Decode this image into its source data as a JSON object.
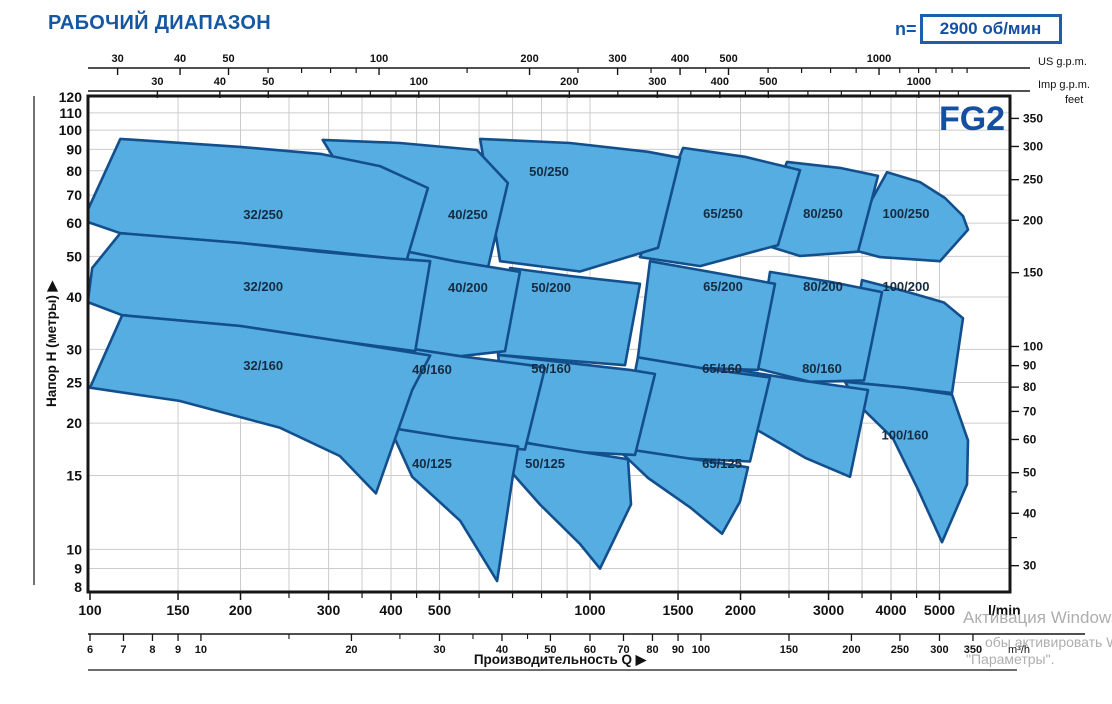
{
  "header": {
    "title": "РАБОЧИЙ ДИАПАЗОН",
    "rpm_prefix": "n=",
    "rpm_value": "2900 об/мин"
  },
  "model_badge": "FG2",
  "watermark": {
    "line1": "Активация Windows",
    "line2": "обы активировать Windows, перейдите",
    "line3": "\"Параметры\"."
  },
  "colors": {
    "accent_blue": "#1557a0",
    "region_fill": "#56ade2",
    "region_stroke": "#134f8c",
    "grid": "#cccccc",
    "axis": "#161616",
    "watermark": "#aeaeae"
  },
  "chart_data": {
    "type": "area",
    "title": "РАБОЧИЙ ДИАПАЗОН",
    "subtitle": "n= 2900 об/мин",
    "model": "FG2",
    "x_scale": "log",
    "y_scale": "log",
    "x_range_lmin": [
      100,
      5900
    ],
    "y_range_m": [
      8,
      120
    ],
    "xlabel": "Производительность Q  ▶",
    "ylabel": "Напор H (метры)  ▶",
    "axes": {
      "x_lmin": {
        "unit": "l/min",
        "labeled": [
          100,
          150,
          200,
          300,
          400,
          500,
          1000,
          1500,
          2000,
          3000,
          4000,
          5000
        ],
        "minor": [
          250,
          350,
          450,
          600,
          700,
          800,
          900,
          2500,
          3500,
          4500
        ]
      },
      "x_m3h": {
        "unit": "m³/h",
        "factor_to_lmin": 16.667,
        "labeled": [
          6,
          7,
          8,
          9,
          10,
          20,
          30,
          40,
          50,
          60,
          70,
          80,
          90,
          100,
          150,
          200,
          250,
          300,
          350
        ],
        "minor": [
          15,
          25,
          35,
          45
        ]
      },
      "x_usgpm": {
        "unit": "US g.p.m.",
        "factor_to_lmin": 3.785,
        "labeled": [
          30,
          40,
          50,
          100,
          200,
          300,
          400,
          500,
          1000
        ],
        "minor": [
          60,
          70,
          80,
          90,
          150,
          250,
          350,
          450,
          600,
          700,
          800,
          900,
          1100,
          1200,
          1300,
          1400,
          1500
        ]
      },
      "x_impgpm": {
        "unit": "Imp g.p.m.",
        "factor_to_lmin": 4.546,
        "labeled": [
          30,
          40,
          50,
          100,
          200,
          300,
          400,
          500,
          1000
        ],
        "minor": [
          60,
          70,
          80,
          90,
          150,
          250,
          350,
          450,
          600,
          700,
          800,
          900,
          1100,
          1200
        ]
      },
      "y_m": {
        "unit": "метры",
        "labeled": [
          120,
          110,
          100,
          90,
          80,
          70,
          60,
          50,
          40,
          30,
          25,
          20,
          15,
          10,
          9,
          8
        ]
      },
      "y_feet": {
        "unit": "feet",
        "factor_to_m": 0.3048,
        "labeled": [
          350,
          300,
          250,
          200,
          150,
          100,
          90,
          80,
          70,
          60,
          50,
          40,
          30
        ],
        "minor": [
          45,
          35
        ]
      }
    },
    "grid": {
      "v_lmin": [
        150,
        200,
        250,
        300,
        350,
        400,
        450,
        500,
        600,
        700,
        800,
        900,
        1000,
        1500,
        2000,
        2500,
        3000,
        3500,
        4000,
        4500,
        5000
      ],
      "h_m": [
        9,
        10,
        15,
        20,
        25,
        30,
        40,
        50,
        60,
        70,
        80,
        90,
        100,
        110
      ]
    },
    "regions": [
      {
        "label": "100/250",
        "label_pos": [
          4285,
          63.1
        ],
        "outline": [
          [
            3236,
            52.4
          ],
          [
            3926,
            79.4
          ],
          [
            4571,
            75.2
          ],
          [
            5129,
            68.9
          ],
          [
            5572,
            62.4
          ],
          [
            5702,
            57.9
          ],
          [
            5012,
            48.7
          ],
          [
            3802,
            49.8
          ]
        ]
      },
      {
        "label": "100/200",
        "label_pos": [
          4285,
          42.2
        ],
        "outline": [
          [
            3236,
            25.1
          ],
          [
            3500,
            43.9
          ],
          [
            4266,
            41.3
          ],
          [
            5105,
            38.8
          ],
          [
            5572,
            35.6
          ],
          [
            5297,
            23.6
          ],
          [
            4266,
            24.3
          ]
        ]
      },
      {
        "label": "100/160",
        "label_pos": [
          4266,
          18.7
        ],
        "outline": [
          [
            3236,
            25.1
          ],
          [
            4266,
            24.3
          ],
          [
            5297,
            23.4
          ],
          [
            5702,
            18.2
          ],
          [
            5675,
            14.3
          ],
          [
            5058,
            10.4
          ],
          [
            4529,
            13.9
          ],
          [
            4036,
            18.4
          ],
          [
            3436,
            22.2
          ]
        ]
      },
      {
        "label": "80/250",
        "label_pos": [
          2924,
          63.1
        ],
        "outline": [
          [
            2138,
            54.1
          ],
          [
            2477,
            84.0
          ],
          [
            3162,
            81.3
          ],
          [
            3767,
            77.8
          ],
          [
            3436,
            51.3
          ],
          [
            2630,
            50.1
          ]
        ]
      },
      {
        "label": "80/200",
        "label_pos": [
          2924,
          42.2
        ],
        "outline": [
          [
            2138,
            27.1
          ],
          [
            2291,
            45.9
          ],
          [
            3048,
            43.4
          ],
          [
            3837,
            41.1
          ],
          [
            3532,
            25.3
          ],
          [
            2754,
            25.1
          ]
        ]
      },
      {
        "label": "80/160",
        "label_pos": [
          2910,
          26.9
        ],
        "outline": [
          [
            1644,
            22.3
          ],
          [
            1977,
            26.8
          ],
          [
            2630,
            25.3
          ],
          [
            3598,
            24.0
          ],
          [
            3311,
            14.9
          ],
          [
            2704,
            16.5
          ],
          [
            2188,
            19.1
          ]
        ]
      },
      {
        "label": "65/250",
        "label_pos": [
          1845,
          63.1
        ],
        "outline": [
          [
            1259,
            49.8
          ],
          [
            1535,
            90.7
          ],
          [
            2042,
            86.4
          ],
          [
            2630,
            80.3
          ],
          [
            2377,
            53.2
          ],
          [
            1660,
            47.4
          ]
        ]
      },
      {
        "label": "65/200",
        "label_pos": [
          1845,
          42.2
        ],
        "outline": [
          [
            1247,
            28.7
          ],
          [
            1318,
            48.7
          ],
          [
            1738,
            45.9
          ],
          [
            2344,
            43.0
          ],
          [
            2168,
            26.8
          ],
          [
            1660,
            27.1
          ]
        ]
      },
      {
        "label": "65/160",
        "label_pos": [
          1837,
          26.9
        ],
        "outline": [
          [
            1148,
            17.3
          ],
          [
            1247,
            28.7
          ],
          [
            1660,
            27.1
          ],
          [
            2291,
            25.7
          ],
          [
            2089,
            16.2
          ],
          [
            1514,
            16.5
          ]
        ]
      },
      {
        "label": "65/125",
        "label_pos": [
          1837,
          16.0
        ],
        "outline": [
          [
            1127,
            17.5
          ],
          [
            1514,
            16.6
          ],
          [
            2070,
            15.7
          ],
          [
            1995,
            13.0
          ],
          [
            1837,
            10.9
          ],
          [
            1585,
            12.6
          ],
          [
            1307,
            14.8
          ]
        ]
      },
      {
        "label": "50/250",
        "label_pos": [
          828,
          79.4
        ],
        "outline": [
          [
            661,
            48.7
          ],
          [
            603,
            95.3
          ],
          [
            912,
            93.2
          ],
          [
            1306,
            88.8
          ],
          [
            1514,
            85.9
          ],
          [
            1368,
            52.4
          ],
          [
            955,
            46.0
          ]
        ]
      },
      {
        "label": "50/200",
        "label_pos": [
          836,
          42.0
        ],
        "outline": [
          [
            655,
            29.1
          ],
          [
            692,
            46.9
          ],
          [
            912,
            44.9
          ],
          [
            1259,
            43.0
          ],
          [
            1175,
            27.5
          ],
          [
            871,
            28.3
          ]
        ]
      },
      {
        "label": "50/160",
        "label_pos": [
          836,
          26.9
        ],
        "outline": [
          [
            685,
            18.4
          ],
          [
            655,
            29.1
          ],
          [
            871,
            28.0
          ],
          [
            1202,
            26.8
          ],
          [
            1349,
            26.2
          ],
          [
            1230,
            16.8
          ],
          [
            912,
            17.1
          ],
          [
            759,
            17.9
          ]
        ]
      },
      {
        "label": "50/125",
        "label_pos": [
          813,
          16.0
        ],
        "outline": [
          [
            655,
            18.4
          ],
          [
            871,
            17.4
          ],
          [
            1191,
            16.4
          ],
          [
            1208,
            12.8
          ],
          [
            1047,
            9.0
          ],
          [
            955,
            10.3
          ],
          [
            794,
            12.8
          ],
          [
            692,
            15.4
          ]
        ]
      },
      {
        "label": "40/250",
        "label_pos": [
          570,
          62.8
        ],
        "outline": [
          [
            398,
            51.8
          ],
          [
            292,
            94.8
          ],
          [
            417,
            93.2
          ],
          [
            594,
            89.7
          ],
          [
            685,
            74.8
          ],
          [
            625,
            46.9
          ],
          [
            501,
            49.0
          ]
        ]
      },
      {
        "label": "40/200",
        "label_pos": [
          570,
          42.0
        ],
        "outline": [
          [
            425,
            30.3
          ],
          [
            432,
            51.3
          ],
          [
            537,
            48.7
          ],
          [
            724,
            45.9
          ],
          [
            676,
            29.7
          ],
          [
            550,
            28.9
          ]
        ]
      },
      {
        "label": "40/160",
        "label_pos": [
          483,
          26.8
        ],
        "outline": [
          [
            395,
            19.3
          ],
          [
            425,
            30.3
          ],
          [
            550,
            28.9
          ],
          [
            759,
            27.5
          ],
          [
            813,
            27.1
          ],
          [
            741,
            17.3
          ],
          [
            575,
            17.8
          ],
          [
            457,
            18.6
          ]
        ]
      },
      {
        "label": "40/125",
        "label_pos": [
          483,
          16.0
        ],
        "outline": [
          [
            398,
            19.5
          ],
          [
            525,
            18.5
          ],
          [
            718,
            17.6
          ],
          [
            701,
            15.0
          ],
          [
            652,
            8.4
          ],
          [
            550,
            11.7
          ],
          [
            441,
            14.9
          ]
        ]
      },
      {
        "label": "32/250",
        "label_pos": [
          222,
          62.8
        ],
        "outline": [
          [
            99,
            64.5
          ],
          [
            115,
            95.3
          ],
          [
            200,
            91.2
          ],
          [
            291,
            87.7
          ],
          [
            380,
            82.1
          ],
          [
            474,
            72.8
          ],
          [
            430,
            49.0
          ],
          [
            302,
            51.3
          ],
          [
            200,
            53.8
          ],
          [
            115,
            56.8
          ],
          [
            99,
            60.4
          ]
        ]
      },
      {
        "label": "32/200",
        "label_pos": [
          222,
          42.2
        ],
        "outline": [
          [
            101,
            46.9
          ],
          [
            115,
            56.8
          ],
          [
            200,
            53.8
          ],
          [
            288,
            51.3
          ],
          [
            398,
            49.5
          ],
          [
            479,
            48.7
          ],
          [
            447,
            29.7
          ],
          [
            316,
            31.4
          ],
          [
            200,
            34.1
          ],
          [
            116,
            36.2
          ],
          [
            99,
            38.9
          ]
        ]
      },
      {
        "label": "32/160",
        "label_pos": [
          222,
          27.4
        ],
        "outline": [
          [
            100,
            24.3
          ],
          [
            116,
            36.2
          ],
          [
            200,
            34.1
          ],
          [
            316,
            31.4
          ],
          [
            479,
            29.0
          ],
          [
            441,
            24.0
          ],
          [
            373,
            13.6
          ],
          [
            316,
            16.7
          ],
          [
            240,
            19.5
          ],
          [
            151,
            22.6
          ]
        ]
      }
    ]
  }
}
